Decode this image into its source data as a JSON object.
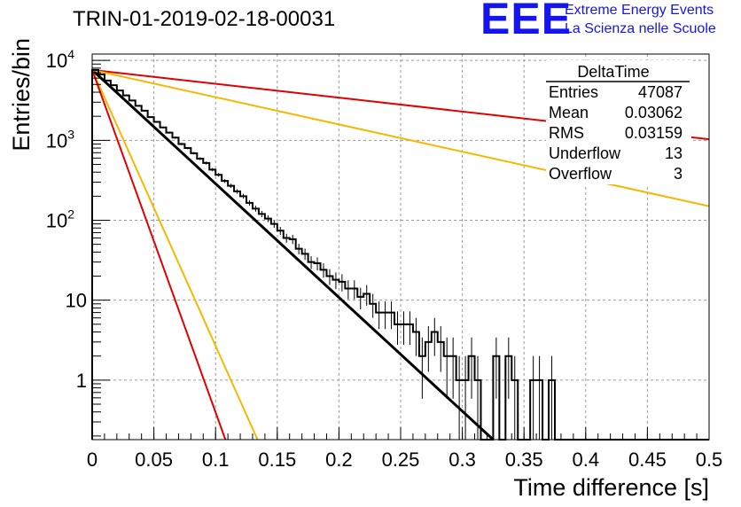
{
  "header": {
    "run_title": "TRIN-01-2019-02-18-00031",
    "logo_mark": "EEE",
    "logo_line1": "Extreme Energy Events",
    "logo_line2": "La Scienza nelle Scuole"
  },
  "stats_box": {
    "title": "DeltaTime",
    "rows": [
      {
        "label": "Entries",
        "value": "47087"
      },
      {
        "label": "Mean",
        "value": "0.03062"
      },
      {
        "label": "RMS",
        "value": "0.03159"
      },
      {
        "label": "Underflow",
        "value": "13"
      },
      {
        "label": "Overflow",
        "value": "3"
      }
    ]
  },
  "colors": {
    "histogram": "#000000",
    "fit": "#000000",
    "red_curve": "#e00000",
    "orange_curve": "#f5b800",
    "grid": "#9a9a9a",
    "logo": "#1414f0"
  },
  "chart_data": {
    "type": "line",
    "xlabel": "Time difference [s]",
    "ylabel": "Entries/bin",
    "xlim": [
      0,
      0.5
    ],
    "ylim": [
      0.18,
      12000
    ],
    "yscale": "log",
    "grid": true,
    "x_ticks": [
      "0",
      "0.05",
      "0.1",
      "0.15",
      "0.2",
      "0.25",
      "0.3",
      "0.35",
      "0.4",
      "0.45",
      "0.5"
    ],
    "y_ticks": [
      {
        "value": 10000,
        "base": "10",
        "exp": "4"
      },
      {
        "value": 1000,
        "base": "10",
        "exp": "3"
      },
      {
        "value": 100,
        "base": "10",
        "exp": "2"
      },
      {
        "value": 10,
        "base": "10",
        "exp": ""
      },
      {
        "value": 1,
        "base": "1",
        "exp": ""
      }
    ],
    "histogram": {
      "bin_width": 0.005,
      "counts": [
        7600,
        6700,
        5600,
        4900,
        4200,
        3650,
        3150,
        2700,
        2350,
        1950,
        1700,
        1450,
        1250,
        1080,
        900,
        800,
        690,
        590,
        520,
        430,
        370,
        310,
        270,
        230,
        200,
        165,
        140,
        120,
        105,
        90,
        74,
        60,
        58,
        44,
        38,
        30,
        29,
        24,
        20,
        18,
        17,
        14,
        14,
        11,
        12,
        9,
        7,
        7,
        7,
        5,
        5,
        5,
        4,
        2,
        3,
        4,
        3,
        2,
        2,
        1,
        1,
        2,
        1,
        0,
        0,
        2,
        0,
        2,
        1,
        0,
        0,
        1,
        1,
        0,
        1,
        0,
        0,
        0,
        0,
        0,
        0,
        0,
        0,
        0,
        0,
        0,
        0,
        0,
        0,
        0,
        0,
        0,
        0,
        0,
        0,
        0,
        0,
        0,
        0,
        0
      ]
    },
    "curves": [
      {
        "color": "#000000",
        "points": [
          [
            0,
            7600
          ],
          [
            0.325,
            0.18
          ]
        ]
      },
      {
        "color": "#e00000",
        "points": [
          [
            0,
            7600
          ],
          [
            0.5,
            1030
          ]
        ]
      },
      {
        "color": "#f5b800",
        "points": [
          [
            0,
            7600
          ],
          [
            0.5,
            150
          ]
        ]
      },
      {
        "color": "#f5b800",
        "points": [
          [
            0,
            7600
          ],
          [
            0.134,
            0.18
          ]
        ]
      },
      {
        "color": "#e00000",
        "points": [
          [
            0,
            7600
          ],
          [
            0.108,
            0.18
          ]
        ]
      }
    ]
  }
}
